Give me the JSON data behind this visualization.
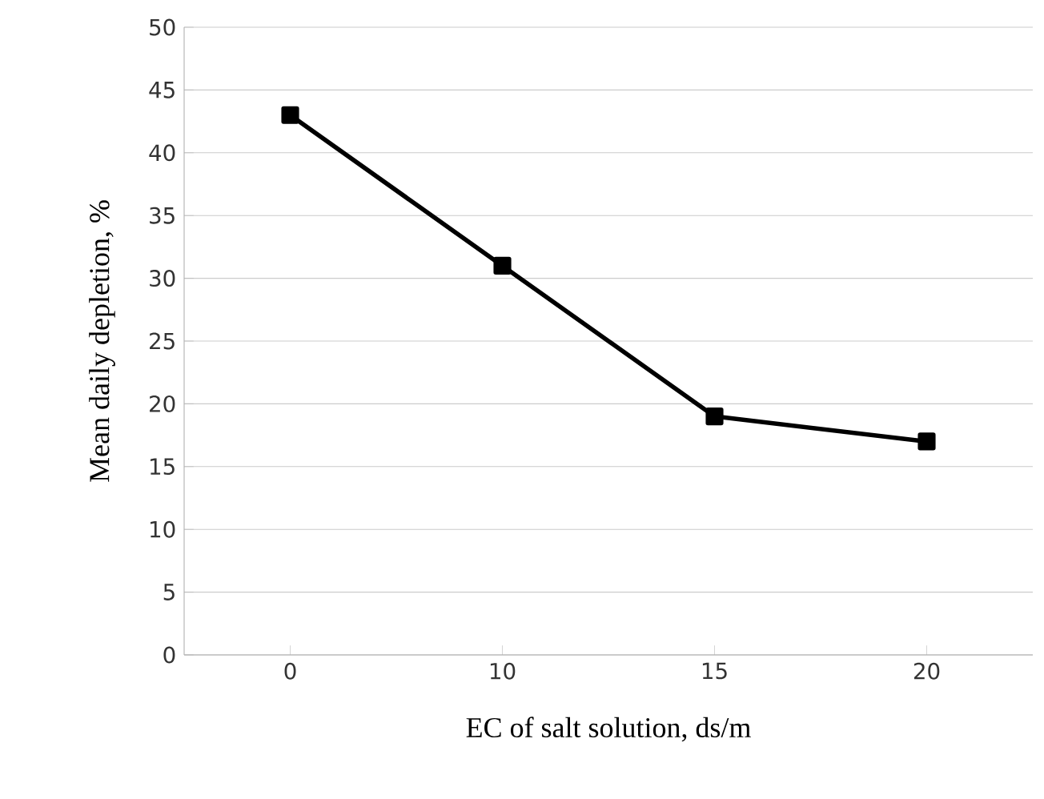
{
  "chart_data": {
    "type": "line",
    "xlabel": "EC of salt solution, ds/m",
    "ylabel": "Mean daily depletion, %",
    "categories": [
      "0",
      "10",
      "15",
      "20"
    ],
    "values": [
      43,
      31,
      19,
      17
    ],
    "color": "#000000",
    "ylim": [
      0,
      50
    ],
    "yticks": [
      0,
      5,
      10,
      15,
      20,
      25,
      30,
      35,
      40,
      45,
      50
    ],
    "grid": "y",
    "marker": "square",
    "line_style": "solid"
  }
}
